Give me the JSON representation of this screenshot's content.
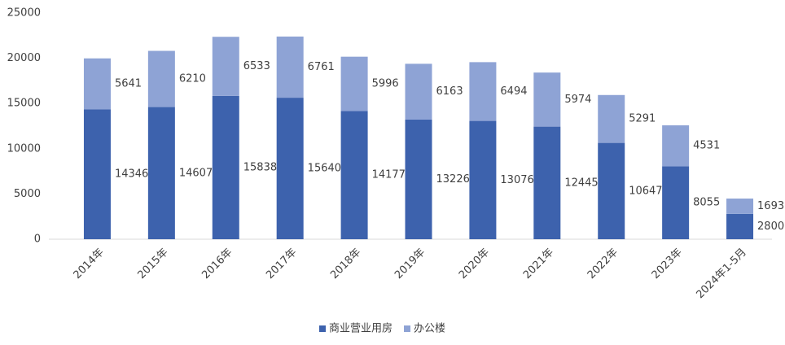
{
  "chart_data": {
    "type": "stacked_bar",
    "categories": [
      "2014年",
      "2015年",
      "2016年",
      "2017年",
      "2018年",
      "2019年",
      "2020年",
      "2021年",
      "2022年",
      "2023年",
      "2024年1-5月"
    ],
    "series": [
      {
        "name": "商业营业用房",
        "color": "#3d62ad",
        "values": [
          14346,
          14607,
          15838,
          15640,
          14177,
          13226,
          13076,
          12445,
          10647,
          8055,
          2800
        ]
      },
      {
        "name": "办公楼",
        "color": "#8ea3d5",
        "values": [
          5641,
          6210,
          6533,
          6761,
          5996,
          6163,
          6494,
          5974,
          5291,
          4531,
          1693
        ]
      }
    ],
    "ylim": [
      0,
      25000
    ],
    "yticks": [
      0,
      5000,
      10000,
      15000,
      20000,
      25000
    ],
    "grid": false,
    "legend": "bottom"
  }
}
